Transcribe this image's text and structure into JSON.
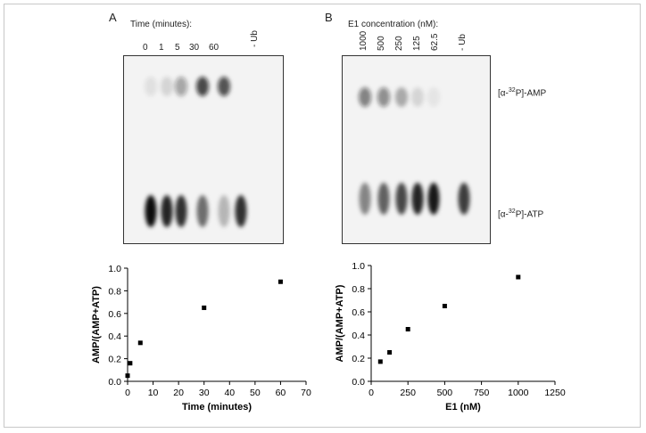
{
  "panels": {
    "a": {
      "letter": "A",
      "header": "Time (minutes):",
      "lanes": [
        "0",
        "1",
        "5",
        "30",
        "60",
        "- Ub"
      ]
    },
    "b": {
      "letter": "B",
      "header": "E1 concentration (nM):",
      "lanes": [
        "1000",
        "500",
        "250",
        "125",
        "62.5",
        "- Ub"
      ],
      "band_top_pre": "[α-",
      "band_top_sup": "32",
      "band_top_post": "P]-AMP",
      "band_bottom_pre": "[α-",
      "band_bottom_sup": "32",
      "band_bottom_post": "P]-ATP"
    }
  },
  "gel_a": {
    "amp_intensity": [
      0.08,
      0.12,
      0.35,
      0.75,
      0.7,
      0
    ],
    "atp_intensity": [
      0.95,
      0.85,
      0.8,
      0.55,
      0.25,
      0.8
    ]
  },
  "gel_b": {
    "amp_intensity": [
      0.5,
      0.45,
      0.3,
      0.12,
      0.06,
      0
    ],
    "atp_intensity": [
      0.45,
      0.6,
      0.7,
      0.85,
      0.9,
      0.75
    ]
  },
  "chart_data": [
    {
      "type": "scatter",
      "xlabel": "Time (minutes)",
      "ylabel": "AMP/(AMP+ATP)",
      "xlim": [
        0,
        70
      ],
      "ylim": [
        0,
        1.0
      ],
      "xticks": [
        "0",
        "10",
        "20",
        "30",
        "40",
        "50",
        "60",
        "70"
      ],
      "yticks": [
        "0.0",
        "0.2",
        "0.4",
        "0.6",
        "0.8",
        "1.0"
      ],
      "grid": false,
      "x": [
        0,
        1,
        5,
        30,
        60
      ],
      "y": [
        0.05,
        0.16,
        0.34,
        0.65,
        0.88
      ]
    },
    {
      "type": "scatter",
      "xlabel": "E1 (nM)",
      "ylabel": "AMP/(AMP+ATP)",
      "xlim": [
        0,
        1250
      ],
      "ylim": [
        0,
        1.0
      ],
      "xticks": [
        "0",
        "250",
        "500",
        "750",
        "1000",
        "1250"
      ],
      "yticks": [
        "0.0",
        "0.2",
        "0.4",
        "0.6",
        "0.8",
        "1.0"
      ],
      "grid": false,
      "x": [
        62.5,
        125,
        250,
        500,
        1000
      ],
      "y": [
        0.17,
        0.25,
        0.45,
        0.65,
        0.9
      ]
    }
  ]
}
